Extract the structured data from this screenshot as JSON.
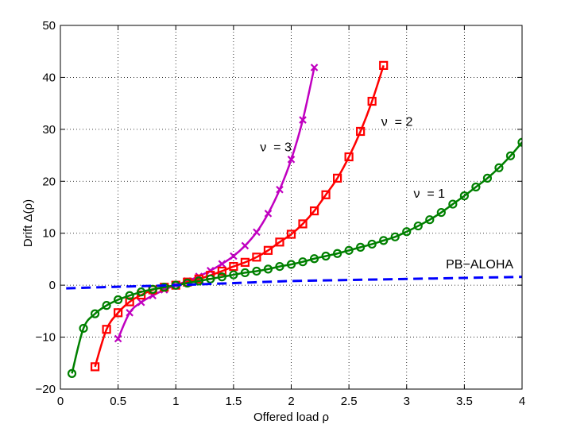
{
  "chart_data": {
    "type": "line",
    "xlabel": "Offered load ρ",
    "ylabel": "Drift Δ(ρ)",
    "xlim": [
      0,
      4
    ],
    "ylim": [
      -20,
      50
    ],
    "xticks": [
      0,
      0.5,
      1,
      1.5,
      2,
      2.5,
      3,
      3.5,
      4
    ],
    "xtick_labels": [
      "0",
      "0.5",
      "1",
      "1.5",
      "2",
      "2.5",
      "3",
      "3.5",
      "4"
    ],
    "yticks": [
      -20,
      -10,
      0,
      10,
      20,
      30,
      40,
      50
    ],
    "ytick_labels": [
      "−20",
      "−10",
      "0",
      "10",
      "20",
      "30",
      "40",
      "50"
    ],
    "grid": true,
    "legend": "none",
    "series": [
      {
        "marker": "x",
        "color": "#c000c0",
        "x": [
          0.5,
          0.6,
          0.7,
          0.8,
          0.9,
          1.0,
          1.1,
          1.2,
          1.3,
          1.4,
          1.5,
          1.6,
          1.7,
          1.8,
          1.9,
          2.0,
          2.1,
          2.2
        ],
        "y": [
          -10.3,
          -5.3,
          -3.3,
          -2.0,
          -0.9,
          0.0,
          0.8,
          1.7,
          2.8,
          4.1,
          5.6,
          7.6,
          10.2,
          13.8,
          18.4,
          24.2,
          31.8,
          41.9
        ]
      },
      {
        "marker": "s",
        "color": "#ff0000",
        "x": [
          0.3,
          0.4,
          0.5,
          0.6,
          0.7,
          0.8,
          0.9,
          1.0,
          1.1,
          1.2,
          1.3,
          1.4,
          1.5,
          1.6,
          1.7,
          1.8,
          1.9,
          2.0,
          2.1,
          2.2,
          2.3,
          2.4,
          2.5,
          2.6,
          2.7,
          2.8
        ],
        "y": [
          -15.7,
          -8.5,
          -5.3,
          -3.2,
          -1.9,
          -0.9,
          -0.4,
          0.0,
          0.6,
          1.2,
          1.9,
          2.7,
          3.6,
          4.4,
          5.4,
          6.7,
          8.3,
          9.8,
          11.8,
          14.3,
          17.4,
          20.6,
          24.7,
          29.6,
          35.4,
          42.3
        ]
      },
      {
        "marker": "o",
        "color": "#008000",
        "x": [
          0.1,
          0.2,
          0.3,
          0.4,
          0.5,
          0.6,
          0.7,
          0.8,
          0.9,
          1.0,
          1.1,
          1.2,
          1.3,
          1.4,
          1.5,
          1.6,
          1.7,
          1.8,
          1.9,
          2.0,
          2.1,
          2.2,
          2.3,
          2.4,
          2.5,
          2.6,
          2.7,
          2.8,
          2.9,
          3.0,
          3.1,
          3.2,
          3.3,
          3.4,
          3.5,
          3.6,
          3.7,
          3.8,
          3.9,
          4.0
        ],
        "y": [
          -17.0,
          -8.3,
          -5.5,
          -3.9,
          -2.8,
          -2.0,
          -1.3,
          -0.8,
          -0.4,
          0.0,
          0.4,
          0.8,
          1.2,
          1.6,
          2.0,
          2.4,
          2.7,
          3.1,
          3.6,
          4.0,
          4.5,
          5.1,
          5.6,
          6.1,
          6.7,
          7.3,
          7.9,
          8.6,
          9.3,
          10.3,
          11.4,
          12.6,
          14.0,
          15.6,
          17.2,
          18.9,
          20.6,
          22.6,
          24.9,
          27.5
        ]
      },
      {
        "marker": "none",
        "color": "#0000ff",
        "dashed": true,
        "x": [
          0.05,
          0.5,
          1.0,
          1.5,
          2.0,
          2.5,
          3.0,
          3.5,
          4.0
        ],
        "y": [
          -0.6,
          -0.3,
          0.0,
          0.4,
          0.8,
          1.0,
          1.2,
          1.4,
          1.6
        ]
      }
    ],
    "annotations": [
      {
        "text": "ν  = 3",
        "x": 1.73,
        "y": 25.8
      },
      {
        "text": "ν  = 2",
        "x": 2.78,
        "y": 30.7
      },
      {
        "text": "ν  = 1",
        "x": 3.06,
        "y": 16.8
      },
      {
        "text": "PB−ALOHA",
        "x": 3.34,
        "y": 3.2
      }
    ]
  }
}
